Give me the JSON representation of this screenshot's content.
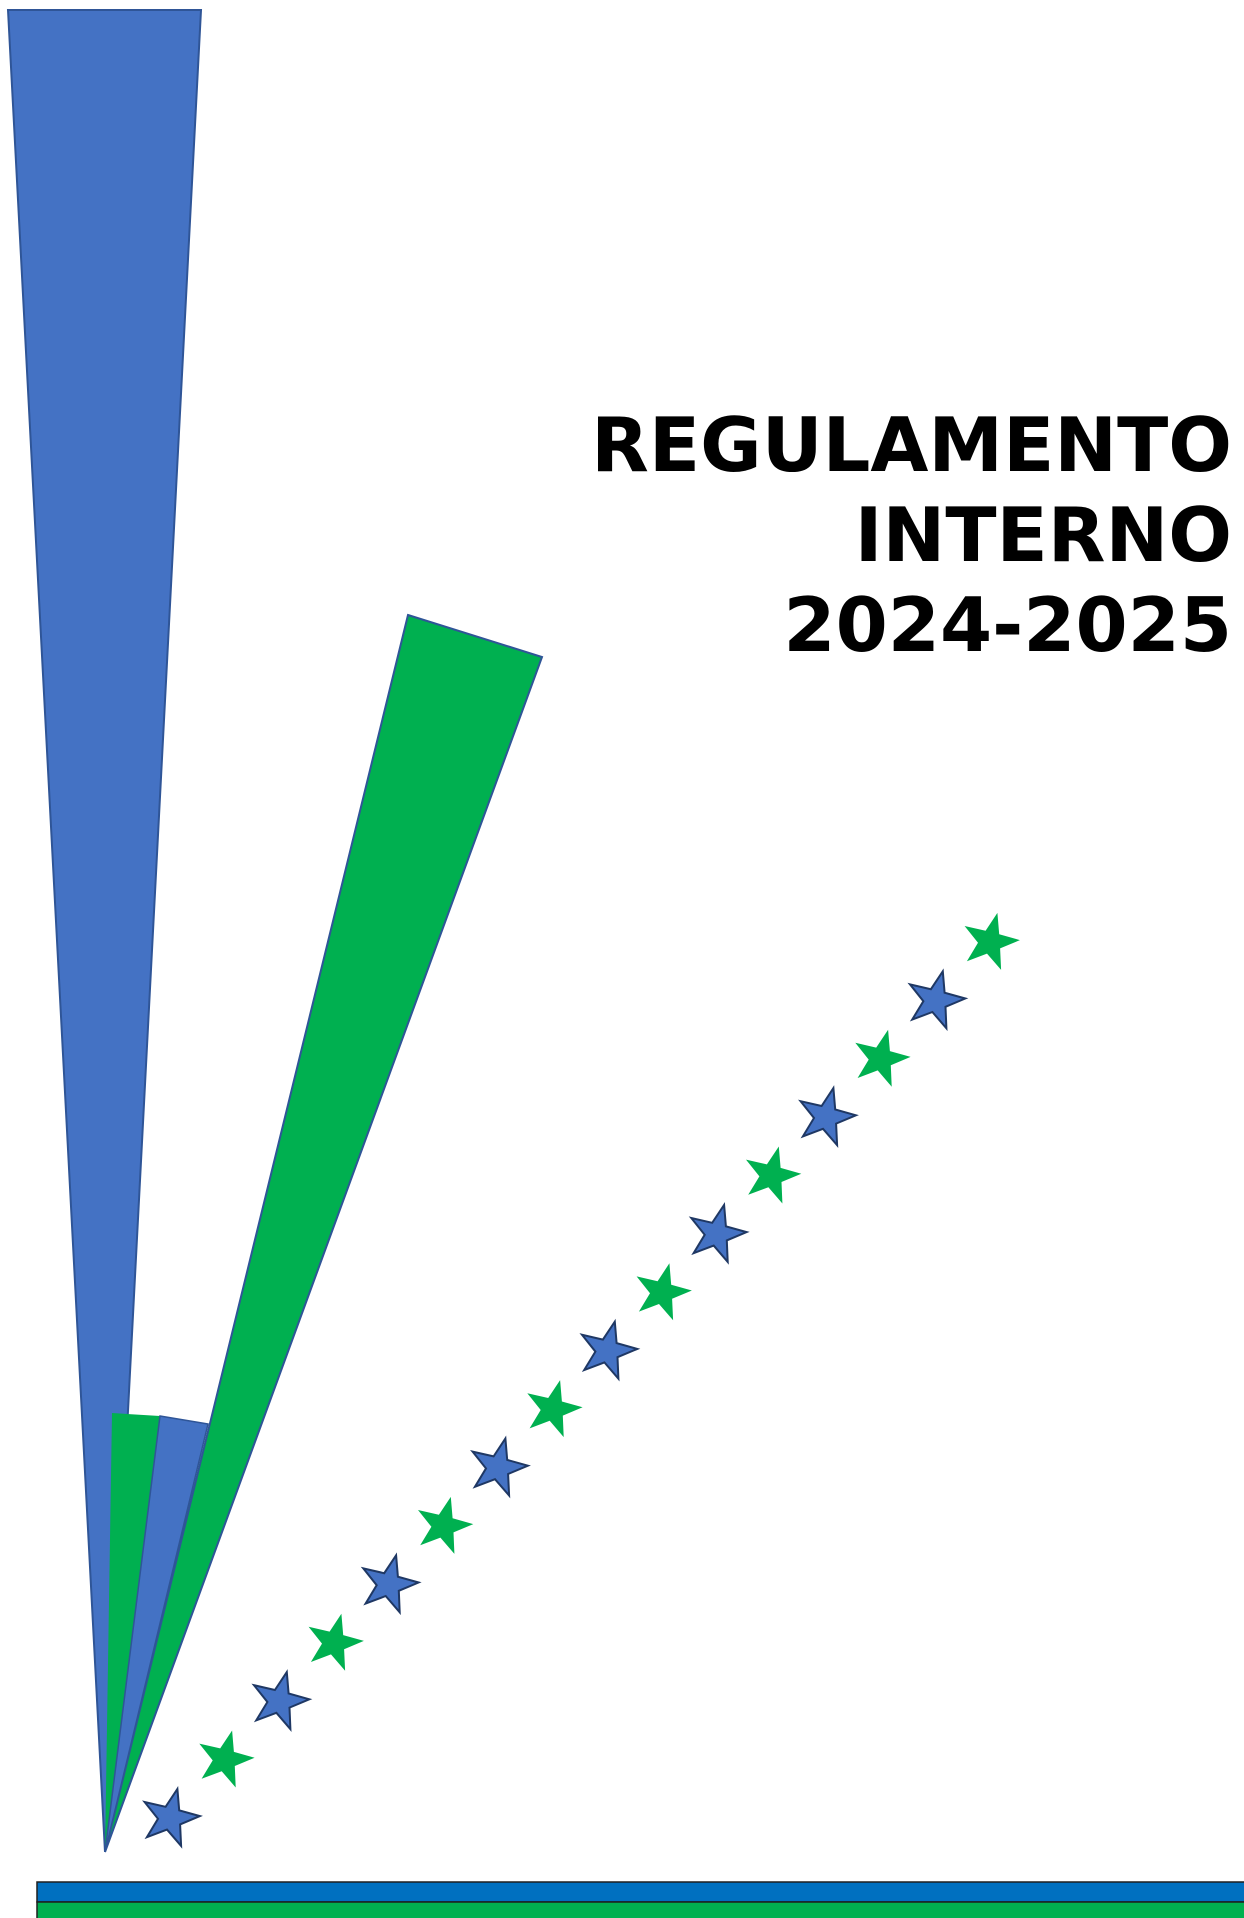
{
  "document": {
    "title_lines": [
      "REGULAMENTO",
      "INTERNO",
      "2024-2025"
    ]
  },
  "colors": {
    "blue": "#4472C4",
    "green": "#00B050",
    "outline": "#2F5597",
    "band_blue": "#0070C0",
    "band_green": "#00B050",
    "title_text": "#000000"
  },
  "decoration": {
    "star_trail_colors": [
      "blue",
      "green",
      "blue",
      "green",
      "blue",
      "green",
      "blue",
      "green",
      "blue",
      "green",
      "blue",
      "green",
      "blue",
      "green",
      "blue",
      "green"
    ]
  }
}
